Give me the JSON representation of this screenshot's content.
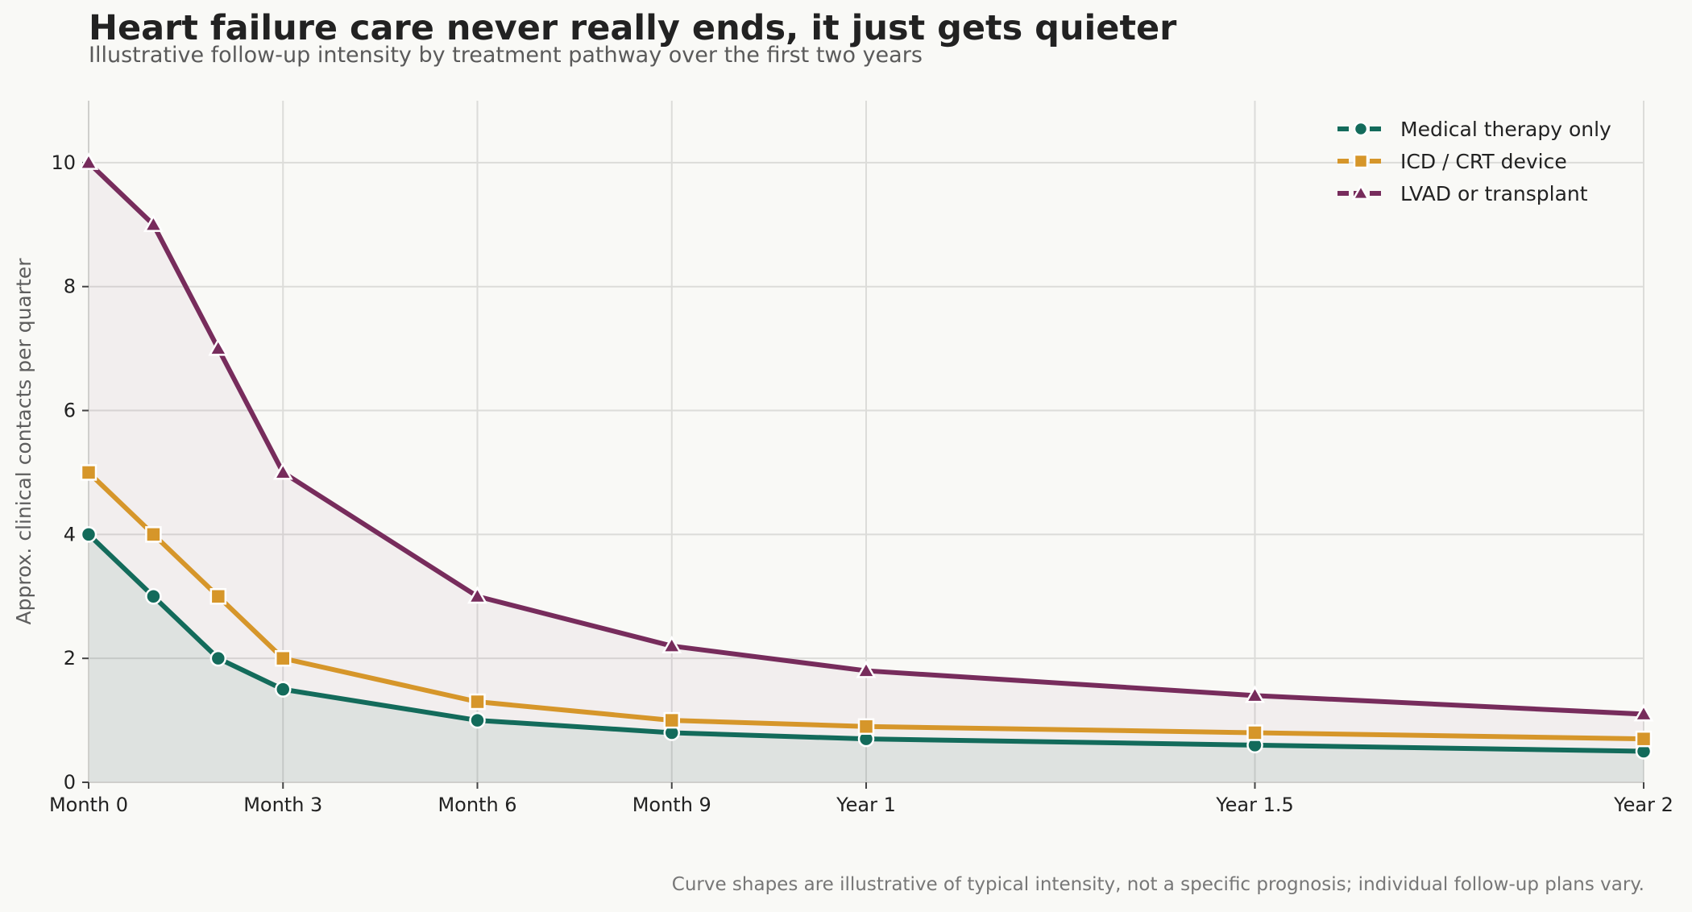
{
  "header": {
    "title": "Heart failure care never really ends, it just gets quieter",
    "subtitle": "Illustrative follow-up intensity by treatment pathway over the first two years"
  },
  "footnote": "Curve shapes are illustrative of typical intensity, not a specific prognosis; individual follow-up plans vary.",
  "chart_data": {
    "type": "line",
    "title": "Heart failure care never really ends, it just gets quieter",
    "subtitle": "Illustrative follow-up intensity by treatment pathway over the first two years",
    "xlabel": "",
    "ylabel": "Approx. clinical contacts per quarter",
    "x_unit": "months",
    "x": [
      0,
      1,
      2,
      3,
      6,
      9,
      12,
      18,
      24
    ],
    "xlim": [
      0,
      24
    ],
    "ylim": [
      0,
      11
    ],
    "x_ticks": [
      {
        "value": 0,
        "label": "Month 0"
      },
      {
        "value": 3,
        "label": "Month 3"
      },
      {
        "value": 6,
        "label": "Month 6"
      },
      {
        "value": 9,
        "label": "Month 9"
      },
      {
        "value": 12,
        "label": "Year 1"
      },
      {
        "value": 18,
        "label": "Year 1.5"
      },
      {
        "value": 24,
        "label": "Year 2"
      }
    ],
    "y_ticks": [
      0,
      2,
      4,
      6,
      8,
      10
    ],
    "grid": true,
    "legend_position": "top-right",
    "series": [
      {
        "name": "Medical therapy only",
        "color": "#136b5b",
        "marker": "circle",
        "values": [
          4,
          3,
          2,
          1.5,
          1.0,
          0.8,
          0.7,
          0.6,
          0.5
        ]
      },
      {
        "name": "ICD / CRT device",
        "color": "#d6962a",
        "marker": "square",
        "values": [
          5,
          4,
          3,
          2,
          1.3,
          1.0,
          0.9,
          0.8,
          0.7
        ]
      },
      {
        "name": "LVAD or transplant",
        "color": "#772c5c",
        "marker": "triangle",
        "values": [
          10,
          9,
          7,
          5,
          3,
          2.2,
          1.8,
          1.4,
          1.1
        ]
      }
    ],
    "fills": [
      {
        "series": "Medical therapy only",
        "color": "#136b5b",
        "opacity": 0.09
      },
      {
        "series": "LVAD or transplant",
        "color": "#772c5c",
        "opacity": 0.05
      }
    ]
  }
}
